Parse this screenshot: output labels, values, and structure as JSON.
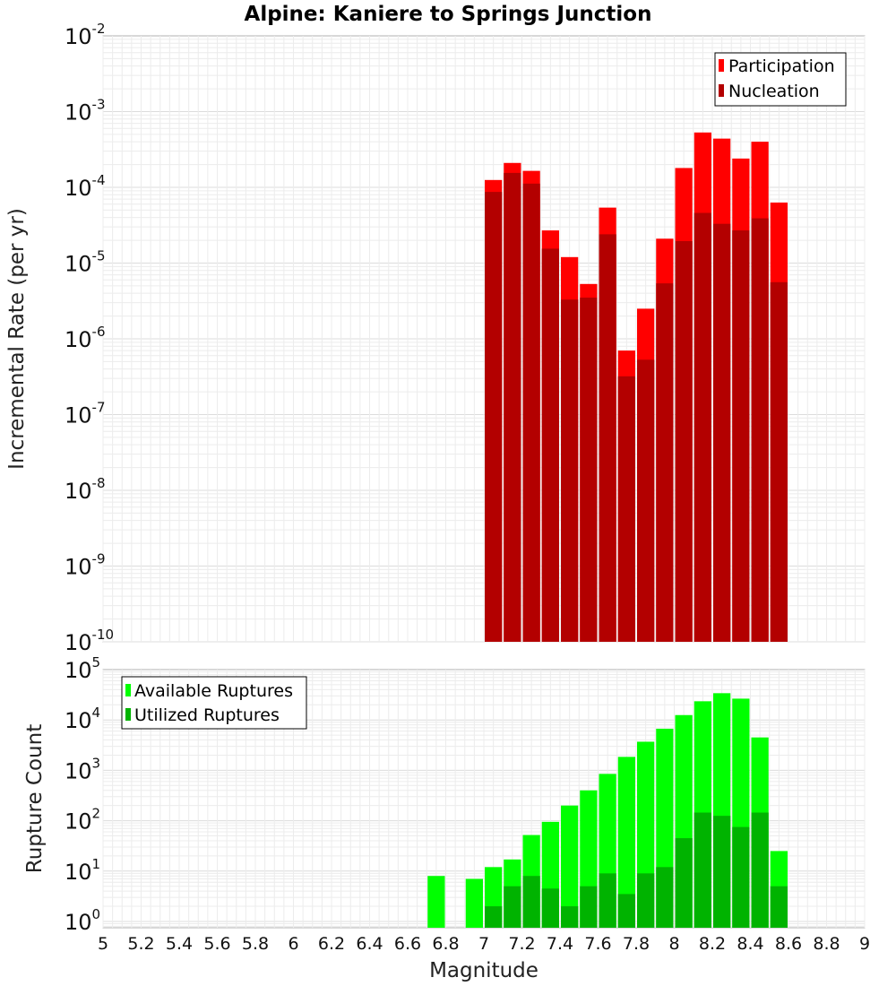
{
  "chart_data": [
    {
      "type": "bar",
      "title": "Alpine: Kaniere to Springs Junction",
      "xlabel": "",
      "ylabel": "Incremental Rate (per yr)",
      "yscale": "log",
      "ylim": [
        1e-10,
        0.01
      ],
      "ytick_exponents": [
        "-2",
        "-3",
        "-4",
        "-5",
        "-6",
        "-7",
        "-8",
        "-9",
        "-10"
      ],
      "xlim": [
        5.0,
        9.0
      ],
      "bar_width": 0.1,
      "grid": true,
      "legend_position": "top-right",
      "x": [
        7.05,
        7.15,
        7.25,
        7.35,
        7.45,
        7.55,
        7.65,
        7.75,
        7.85,
        7.95,
        8.05,
        8.15,
        8.25,
        8.35,
        8.45,
        8.55
      ],
      "series": [
        {
          "name": "Participation",
          "color": "#ff0000",
          "values": [
            0.000125,
            0.00021,
            0.000165,
            2.7e-05,
            1.2e-05,
            5.3e-06,
            5.4e-05,
            7e-07,
            2.5e-06,
            2.1e-05,
            0.00018,
            0.00053,
            0.00044,
            0.00024,
            0.0004,
            6.3e-05
          ]
        },
        {
          "name": "Nucleation",
          "color": "#b30000",
          "values": [
            8.7e-05,
            0.000155,
            0.000112,
            1.55e-05,
            3.3e-06,
            3.5e-06,
            2.4e-05,
            3.2e-07,
            5.3e-07,
            5.4e-06,
            1.95e-05,
            4.6e-05,
            3.3e-05,
            2.7e-05,
            3.9e-05,
            5.6e-06
          ]
        }
      ]
    },
    {
      "type": "bar",
      "title": "",
      "xlabel": "Magnitude",
      "ylabel": "Rupture Count",
      "yscale": "log",
      "ylim": [
        0.75,
        100000
      ],
      "ytick_exponents": [
        "5",
        "4",
        "3",
        "2",
        "1",
        "0"
      ],
      "xlim": [
        5.0,
        9.0
      ],
      "xticks": [
        "5",
        "5.2",
        "5.4",
        "5.6",
        "5.8",
        "6",
        "6.2",
        "6.4",
        "6.6",
        "6.8",
        "7",
        "7.2",
        "7.4",
        "7.6",
        "7.8",
        "8",
        "8.2",
        "8.4",
        "8.6",
        "8.8",
        "9"
      ],
      "bar_width": 0.1,
      "grid": true,
      "legend_position": "top-left",
      "x": [
        6.75,
        6.95,
        7.05,
        7.15,
        7.25,
        7.35,
        7.45,
        7.55,
        7.65,
        7.75,
        7.85,
        7.95,
        8.05,
        8.15,
        8.25,
        8.35,
        8.45,
        8.55
      ],
      "series": [
        {
          "name": "Available Ruptures",
          "color": "#00ff00",
          "values": [
            8,
            7,
            12,
            17,
            52,
            95,
            200,
            400,
            850,
            1850,
            3700,
            6700,
            12500,
            23500,
            34000,
            26500,
            4500,
            25
          ]
        },
        {
          "name": "Utilized Ruptures",
          "color": "#00b300",
          "values": [
            null,
            null,
            2,
            5,
            8,
            4.5,
            2,
            5,
            9,
            3.5,
            9,
            12,
            45,
            145,
            125,
            75,
            145,
            5
          ]
        }
      ]
    }
  ]
}
